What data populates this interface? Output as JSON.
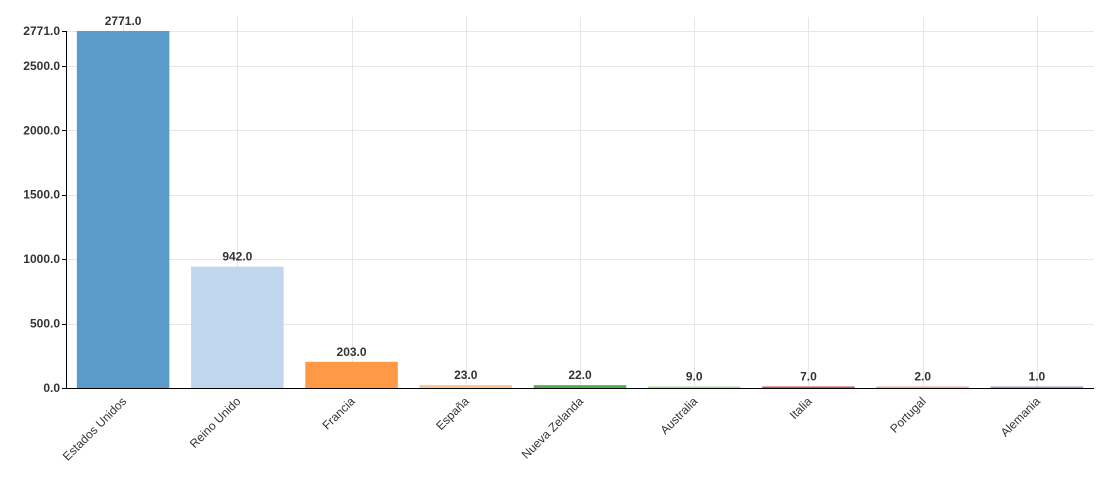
{
  "chart_data": {
    "type": "bar",
    "categories": [
      "Estados Unidos",
      "Reino Unido",
      "Francia",
      "España",
      "Nueva Zelanda",
      "Australia",
      "Italia",
      "Portugal",
      "Alemania"
    ],
    "values": [
      2771.0,
      942.0,
      203.0,
      23.0,
      22.0,
      9.0,
      7.0,
      2.0,
      1.0
    ],
    "value_labels": [
      "2771.0",
      "942.0",
      "203.0",
      "23.0",
      "22.0",
      "9.0",
      "7.0",
      "2.0",
      "1.0"
    ],
    "colors": [
      "#5b9bc9",
      "#c0d6ee",
      "#fe9a46",
      "#fdc592",
      "#4eb04e",
      "#9fdf8f",
      "#d64f4f",
      "#f5a0a0",
      "#a98fc9"
    ],
    "y_ticks": [
      0.0,
      500.0,
      1000.0,
      1500.0,
      2000.0,
      2500.0,
      2771.0
    ],
    "y_tick_labels": [
      "0.0",
      "500.0",
      "1000.0",
      "1500.0",
      "2000.0",
      "2500.0",
      "2771.0"
    ],
    "ylim": [
      0,
      2771.0
    ],
    "grid": true,
    "title": "",
    "xlabel": "",
    "ylabel": ""
  }
}
